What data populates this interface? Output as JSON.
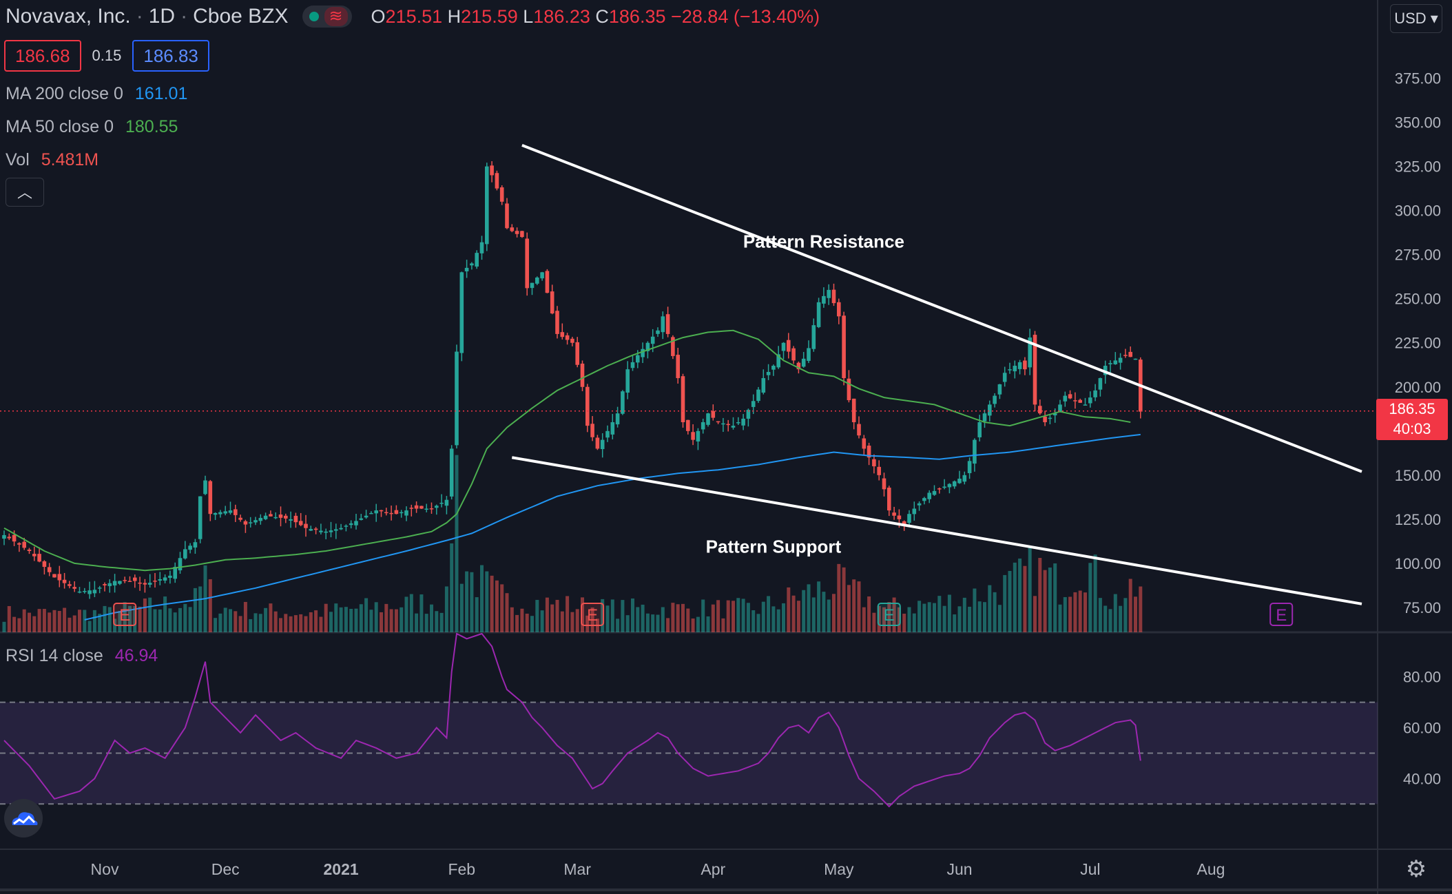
{
  "header": {
    "symbol": "Novavax, Inc.",
    "interval": "1D",
    "exchange": "Cboe BZX",
    "ohlc": {
      "o_label": "O",
      "o": "215.51",
      "h_label": "H",
      "h": "215.59",
      "l_label": "L",
      "l": "186.23",
      "c_label": "C",
      "c": "186.35",
      "change": "−28.84 (−13.40%)"
    },
    "currency": "USD"
  },
  "trade": {
    "sell": "186.68",
    "spread": "0.15",
    "buy": "186.83"
  },
  "indicators": {
    "ma200_label": "MA 200 close 0",
    "ma200_value": "161.01",
    "ma50_label": "MA 50 close 0",
    "ma50_value": "180.55",
    "vol_label": "Vol",
    "vol_value": "5.481M",
    "rsi_label": "RSI 14 close",
    "rsi_value": "46.94"
  },
  "price_tag": {
    "price": "186.35",
    "countdown": "40:03"
  },
  "colors": {
    "up": "#26a69a",
    "down": "#ef5350",
    "ma200": "#2196f3",
    "ma50": "#4caf50",
    "rsi": "#9c27b0",
    "trend": "#ffffff"
  },
  "chart_data": {
    "type": "candlestick",
    "price_axis": {
      "ylim": [
        66,
        392
      ],
      "ticks": [
        "375.00",
        "350.00",
        "325.00",
        "300.00",
        "275.00",
        "250.00",
        "225.00",
        "200.00",
        "150.00",
        "125.00",
        "100.00",
        "75.00"
      ]
    },
    "rsi_axis": {
      "ylim": [
        13,
        97
      ],
      "ticks": [
        "80.00",
        "60.00",
        "40.00"
      ],
      "bands": [
        30,
        50,
        70
      ]
    },
    "x_axis": {
      "labels": [
        "Nov",
        "Dec",
        "2021",
        "Feb",
        "Mar",
        "Apr",
        "May",
        "Jun",
        "Jul",
        "Aug"
      ]
    },
    "x_day_range": [
      0,
      211
    ],
    "month_ticks": [
      {
        "label": "Nov",
        "day": 20
      },
      {
        "label": "Dec",
        "day": 44
      },
      {
        "label": "2021",
        "day": 67
      },
      {
        "label": "Feb",
        "day": 91
      },
      {
        "label": "Mar",
        "day": 114
      },
      {
        "label": "Apr",
        "day": 141
      },
      {
        "label": "May",
        "day": 166
      },
      {
        "label": "Jun",
        "day": 190
      },
      {
        "label": "Jul",
        "day": 216
      },
      {
        "label": "Aug",
        "day": 240
      }
    ],
    "close_anchors": [
      [
        0,
        116
      ],
      [
        5,
        107
      ],
      [
        10,
        92
      ],
      [
        15,
        84
      ],
      [
        18,
        85
      ],
      [
        22,
        90
      ],
      [
        26,
        90
      ],
      [
        28,
        88
      ],
      [
        33,
        93
      ],
      [
        36,
        108
      ],
      [
        38,
        112
      ],
      [
        39,
        138
      ],
      [
        40,
        147
      ],
      [
        41,
        128
      ],
      [
        45,
        130
      ],
      [
        48,
        122
      ],
      [
        52,
        127
      ],
      [
        57,
        125
      ],
      [
        60,
        120
      ],
      [
        64,
        118
      ],
      [
        67,
        120
      ],
      [
        70,
        124
      ],
      [
        74,
        130
      ],
      [
        78,
        128
      ],
      [
        81,
        131
      ],
      [
        85,
        131
      ],
      [
        88,
        136
      ],
      [
        89,
        165
      ],
      [
        90,
        220
      ],
      [
        91,
        265
      ],
      [
        93,
        270
      ],
      [
        95,
        282
      ],
      [
        96,
        325
      ],
      [
        97,
        320
      ],
      [
        99,
        305
      ],
      [
        100,
        290
      ],
      [
        103,
        285
      ],
      [
        104,
        256
      ],
      [
        107,
        265
      ],
      [
        110,
        230
      ],
      [
        113,
        225
      ],
      [
        115,
        200
      ],
      [
        116,
        178
      ],
      [
        118,
        165
      ],
      [
        120,
        175
      ],
      [
        122,
        185
      ],
      [
        124,
        210
      ],
      [
        126,
        218
      ],
      [
        128,
        225
      ],
      [
        130,
        232
      ],
      [
        131,
        240
      ],
      [
        132,
        230
      ],
      [
        134,
        205
      ],
      [
        135,
        180
      ],
      [
        137,
        170
      ],
      [
        140,
        185
      ],
      [
        142,
        180
      ],
      [
        145,
        178
      ],
      [
        147,
        182
      ],
      [
        149,
        192
      ],
      [
        151,
        205
      ],
      [
        153,
        212
      ],
      [
        155,
        225
      ],
      [
        157,
        215
      ],
      [
        158,
        210
      ],
      [
        160,
        222
      ],
      [
        162,
        248
      ],
      [
        164,
        255
      ],
      [
        166,
        240
      ],
      [
        167,
        205
      ],
      [
        169,
        180
      ],
      [
        171,
        165
      ],
      [
        173,
        155
      ],
      [
        174,
        150
      ],
      [
        175,
        142
      ],
      [
        176,
        130
      ],
      [
        177,
        127
      ],
      [
        178,
        125
      ],
      [
        179,
        122
      ],
      [
        180,
        128
      ],
      [
        182,
        134
      ],
      [
        184,
        140
      ],
      [
        186,
        142
      ],
      [
        188,
        145
      ],
      [
        190,
        148
      ],
      [
        191,
        150
      ],
      [
        192,
        158
      ],
      [
        193,
        170
      ],
      [
        194,
        180
      ],
      [
        195,
        185
      ],
      [
        197,
        195
      ],
      [
        199,
        208
      ],
      [
        200,
        210
      ],
      [
        201,
        212
      ],
      [
        202,
        214
      ],
      [
        203,
        210
      ],
      [
        204,
        228
      ],
      [
        205,
        190
      ],
      [
        207,
        180
      ],
      [
        209,
        185
      ],
      [
        211,
        195
      ],
      [
        213,
        192
      ],
      [
        215,
        190
      ],
      [
        217,
        198
      ],
      [
        219,
        212
      ],
      [
        221,
        215
      ],
      [
        223,
        218
      ],
      [
        225,
        216
      ],
      [
        226,
        186
      ]
    ],
    "ma50_anchors": [
      [
        0,
        120
      ],
      [
        8,
        107
      ],
      [
        14,
        100
      ],
      [
        20,
        98
      ],
      [
        28,
        96
      ],
      [
        33,
        97
      ],
      [
        38,
        99
      ],
      [
        44,
        102
      ],
      [
        50,
        103
      ],
      [
        58,
        105
      ],
      [
        64,
        107
      ],
      [
        70,
        110
      ],
      [
        76,
        113
      ],
      [
        80,
        115
      ],
      [
        85,
        118
      ],
      [
        88,
        123
      ],
      [
        90,
        128
      ],
      [
        93,
        145
      ],
      [
        96,
        165
      ],
      [
        100,
        177
      ],
      [
        105,
        188
      ],
      [
        110,
        198
      ],
      [
        115,
        205
      ],
      [
        120,
        212
      ],
      [
        125,
        218
      ],
      [
        130,
        223
      ],
      [
        135,
        228
      ],
      [
        140,
        231
      ],
      [
        145,
        232
      ],
      [
        150,
        227
      ],
      [
        155,
        215
      ],
      [
        160,
        208
      ],
      [
        165,
        206
      ],
      [
        170,
        199
      ],
      [
        175,
        194
      ],
      [
        180,
        192
      ],
      [
        185,
        190
      ],
      [
        190,
        185
      ],
      [
        195,
        180
      ],
      [
        200,
        178
      ],
      [
        205,
        182
      ],
      [
        210,
        186
      ],
      [
        215,
        183
      ],
      [
        220,
        182
      ],
      [
        224,
        180
      ]
    ],
    "ma200_anchors": [
      [
        16,
        68
      ],
      [
        22,
        72
      ],
      [
        30,
        76
      ],
      [
        40,
        80
      ],
      [
        50,
        86
      ],
      [
        60,
        93
      ],
      [
        70,
        100
      ],
      [
        80,
        107
      ],
      [
        88,
        113
      ],
      [
        93,
        117
      ],
      [
        100,
        126
      ],
      [
        110,
        138
      ],
      [
        118,
        144
      ],
      [
        126,
        148
      ],
      [
        134,
        151
      ],
      [
        142,
        153
      ],
      [
        150,
        156
      ],
      [
        158,
        160
      ],
      [
        165,
        163
      ],
      [
        172,
        161
      ],
      [
        180,
        160
      ],
      [
        186,
        159
      ],
      [
        192,
        161
      ],
      [
        200,
        163
      ],
      [
        210,
        167
      ],
      [
        220,
        171
      ],
      [
        226,
        173
      ]
    ],
    "rsi_anchors": [
      [
        0,
        55
      ],
      [
        5,
        45
      ],
      [
        10,
        32
      ],
      [
        15,
        35
      ],
      [
        18,
        40
      ],
      [
        22,
        55
      ],
      [
        25,
        50
      ],
      [
        28,
        52
      ],
      [
        32,
        48
      ],
      [
        36,
        60
      ],
      [
        38,
        72
      ],
      [
        40,
        86
      ],
      [
        41,
        70
      ],
      [
        43,
        66
      ],
      [
        47,
        58
      ],
      [
        50,
        65
      ],
      [
        55,
        55
      ],
      [
        58,
        58
      ],
      [
        62,
        52
      ],
      [
        67,
        48
      ],
      [
        70,
        55
      ],
      [
        74,
        52
      ],
      [
        78,
        48
      ],
      [
        82,
        50
      ],
      [
        86,
        60
      ],
      [
        88,
        56
      ],
      [
        89,
        82
      ],
      [
        90,
        97
      ],
      [
        92,
        95
      ],
      [
        95,
        97
      ],
      [
        97,
        92
      ],
      [
        99,
        80
      ],
      [
        100,
        75
      ],
      [
        103,
        70
      ],
      [
        105,
        64
      ],
      [
        107,
        60
      ],
      [
        110,
        53
      ],
      [
        113,
        48
      ],
      [
        115,
        42
      ],
      [
        117,
        36
      ],
      [
        119,
        38
      ],
      [
        121,
        43
      ],
      [
        124,
        50
      ],
      [
        128,
        55
      ],
      [
        130,
        58
      ],
      [
        132,
        56
      ],
      [
        134,
        50
      ],
      [
        137,
        44
      ],
      [
        140,
        41
      ],
      [
        143,
        42
      ],
      [
        146,
        43
      ],
      [
        150,
        46
      ],
      [
        152,
        50
      ],
      [
        154,
        56
      ],
      [
        156,
        60
      ],
      [
        158,
        61
      ],
      [
        160,
        58
      ],
      [
        162,
        64
      ],
      [
        164,
        66
      ],
      [
        166,
        60
      ],
      [
        168,
        49
      ],
      [
        170,
        40
      ],
      [
        173,
        35
      ],
      [
        175,
        31
      ],
      [
        176,
        29
      ],
      [
        178,
        33
      ],
      [
        181,
        37
      ],
      [
        184,
        39
      ],
      [
        187,
        41
      ],
      [
        190,
        42
      ],
      [
        192,
        44
      ],
      [
        194,
        49
      ],
      [
        196,
        56
      ],
      [
        199,
        62
      ],
      [
        201,
        65
      ],
      [
        203,
        66
      ],
      [
        205,
        63
      ],
      [
        207,
        54
      ],
      [
        209,
        51
      ],
      [
        212,
        53
      ],
      [
        215,
        56
      ],
      [
        218,
        59
      ],
      [
        221,
        62
      ],
      [
        224,
        63
      ],
      [
        225,
        61
      ],
      [
        226,
        47
      ]
    ],
    "volume_anchors": [
      [
        0,
        0.12
      ],
      [
        20,
        0.12
      ],
      [
        38,
        0.2
      ],
      [
        40,
        0.35
      ],
      [
        42,
        0.15
      ],
      [
        60,
        0.12
      ],
      [
        88,
        0.2
      ],
      [
        89,
        0.75
      ],
      [
        90,
        1.0
      ],
      [
        91,
        0.45
      ],
      [
        93,
        0.35
      ],
      [
        100,
        0.2
      ],
      [
        120,
        0.15
      ],
      [
        150,
        0.15
      ],
      [
        160,
        0.25
      ],
      [
        166,
        0.3
      ],
      [
        175,
        0.15
      ],
      [
        190,
        0.2
      ],
      [
        200,
        0.3
      ],
      [
        205,
        0.4
      ],
      [
        210,
        0.3
      ],
      [
        215,
        0.45
      ],
      [
        220,
        0.2
      ],
      [
        226,
        0.25
      ]
    ],
    "trendlines": [
      {
        "name": "Pattern Resistance",
        "from": [
          103,
          337
        ],
        "to": [
          270,
          152
        ]
      },
      {
        "name": "Pattern Support",
        "from": [
          101,
          160
        ],
        "to": [
          270,
          77
        ]
      }
    ],
    "annotations": [
      "Pattern Resistance",
      "Pattern Support"
    ],
    "earnings_markers": [
      {
        "label": "E",
        "day": 24,
        "state": "past"
      },
      {
        "label": "E",
        "day": 117,
        "state": "past"
      },
      {
        "label": "E",
        "day": 176,
        "state": "beat"
      },
      {
        "label": "E",
        "day": 254,
        "state": "upcoming"
      }
    ],
    "last_price": 186.35
  }
}
